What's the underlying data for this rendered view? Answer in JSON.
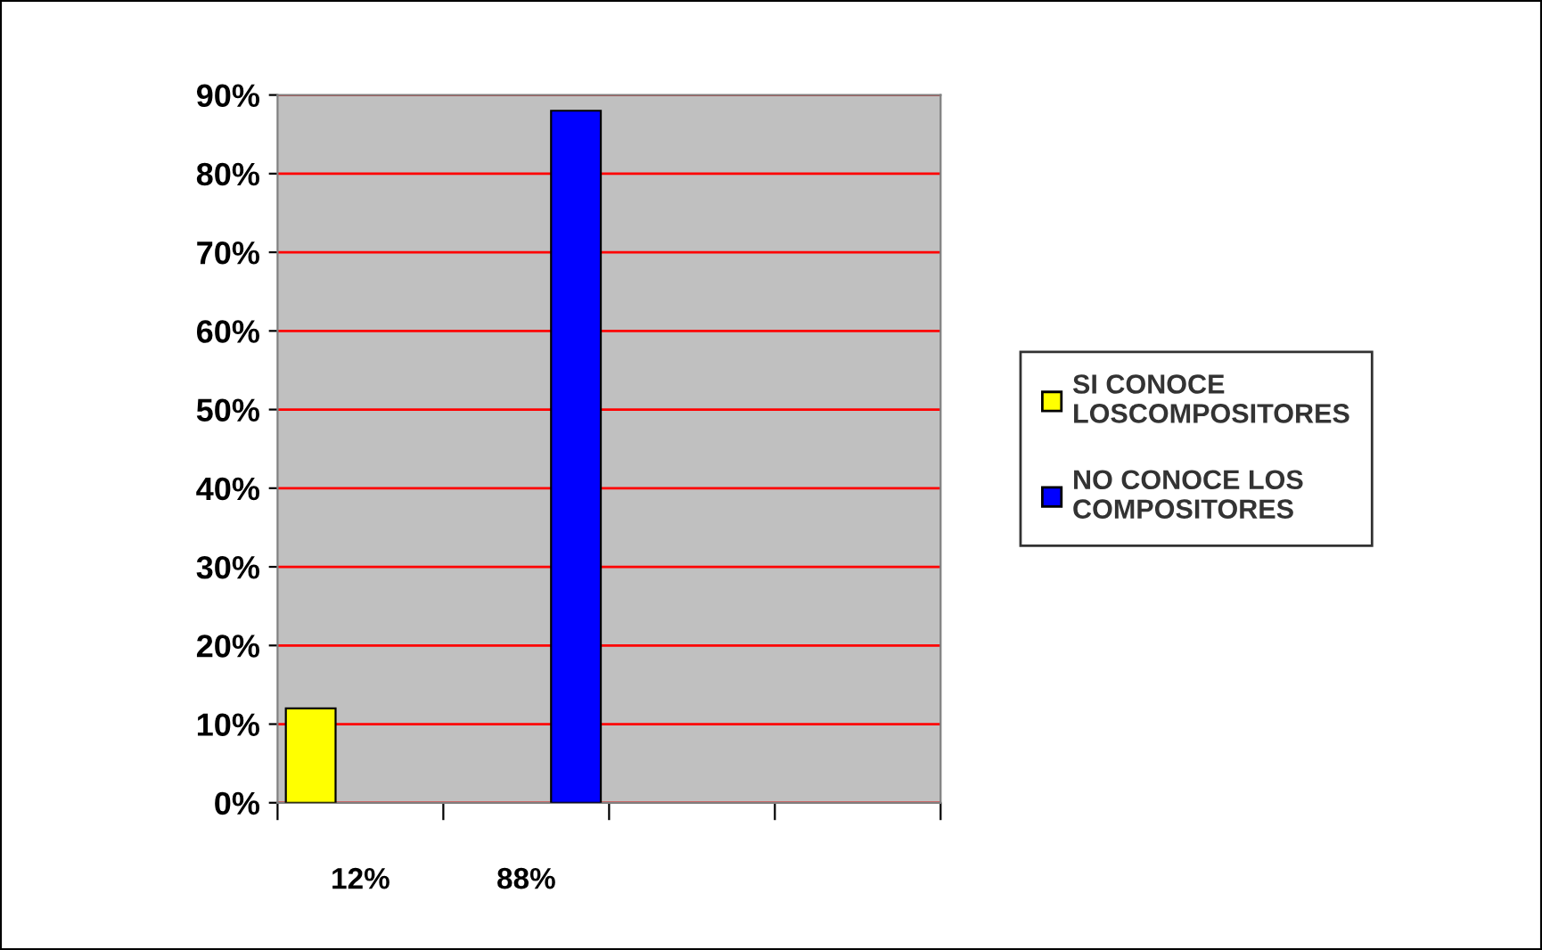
{
  "chart_data": {
    "type": "bar",
    "categories": [
      "12%",
      "88%",
      null,
      null
    ],
    "series": [
      {
        "name": "SI CONOCE LOSCOMPOSITORES",
        "color": "#ffff00",
        "values": [
          12,
          null,
          null,
          null
        ]
      },
      {
        "name": "NO CONOCE LOS COMPOSITORES",
        "color": "#0000ff",
        "values": [
          null,
          88,
          null,
          null
        ]
      }
    ],
    "ylim": [
      0,
      90
    ],
    "yticks": [
      {
        "value": 0,
        "label": "0%"
      },
      {
        "value": 10,
        "label": "10%"
      },
      {
        "value": 20,
        "label": "20%"
      },
      {
        "value": 30,
        "label": "30%"
      },
      {
        "value": 40,
        "label": "40%"
      },
      {
        "value": 50,
        "label": "50%"
      },
      {
        "value": 60,
        "label": "60%"
      },
      {
        "value": 70,
        "label": "70%"
      },
      {
        "value": 80,
        "label": "80%"
      },
      {
        "value": 90,
        "label": "90%"
      }
    ],
    "grid": "y",
    "legend": "right"
  }
}
